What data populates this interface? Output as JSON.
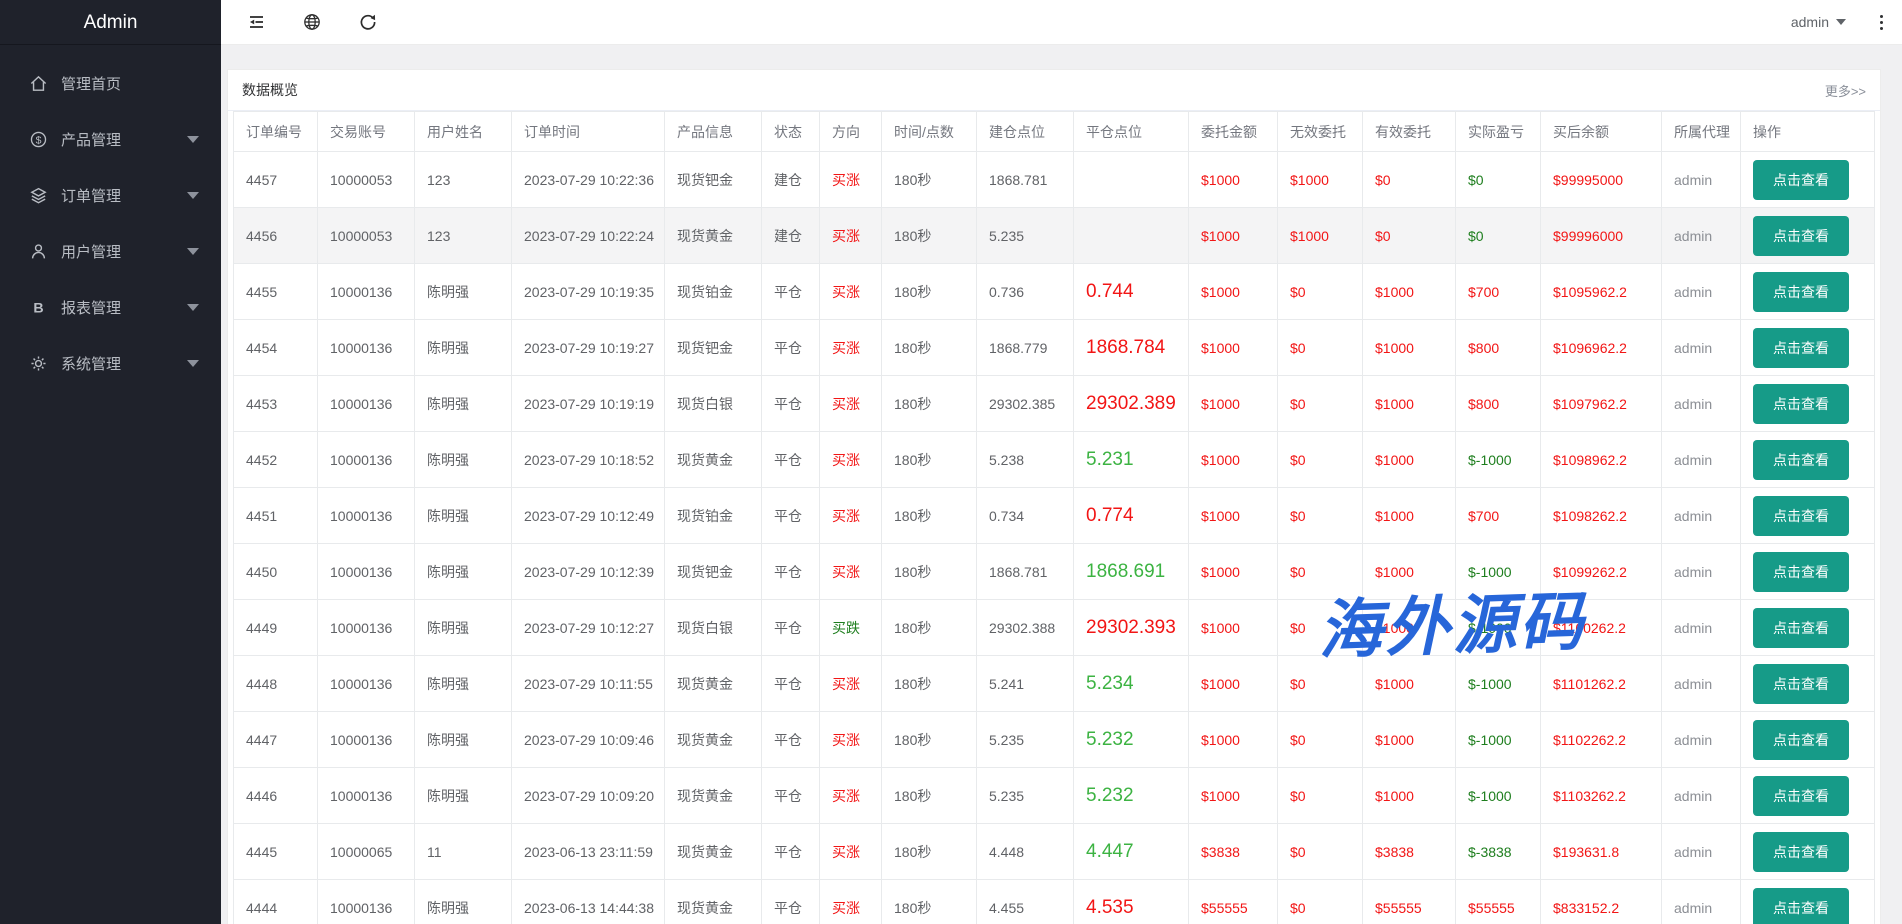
{
  "sidebar": {
    "title": "Admin",
    "items": [
      {
        "key": "home",
        "icon": "home-icon",
        "label": "管理首页",
        "has_caret": false
      },
      {
        "key": "product",
        "icon": "product-icon",
        "label": "产品管理",
        "has_caret": true
      },
      {
        "key": "orders",
        "icon": "orders-icon",
        "label": "订单管理",
        "has_caret": true
      },
      {
        "key": "users",
        "icon": "users-icon",
        "label": "用户管理",
        "has_caret": true
      },
      {
        "key": "reports",
        "icon": "reports-icon",
        "label": "报表管理",
        "has_caret": true
      },
      {
        "key": "system",
        "icon": "system-icon",
        "label": "系统管理",
        "has_caret": true
      }
    ]
  },
  "topbar": {
    "icons": [
      "fold-menu-icon",
      "globe-icon",
      "refresh-icon"
    ],
    "user": "admin",
    "menu_icon": "kebab-menu-icon"
  },
  "panel": {
    "title": "数据概览",
    "more_label": "更多>>"
  },
  "table": {
    "columns": [
      "订单编号",
      "交易账号",
      "用户姓名",
      "订单时间",
      "产品信息",
      "状态",
      "方向",
      "时间/点数",
      "建仓点位",
      "平仓点位",
      "委托金额",
      "无效委托",
      "有效委托",
      "实际盈亏",
      "买后余额",
      "所属代理",
      "操作"
    ],
    "view_button_label": "点击查看",
    "rows": [
      {
        "id": "4457",
        "account": "10000053",
        "name": "123",
        "time": "2023-07-29 10:22:36",
        "product": "现货钯金",
        "status": "建仓",
        "direction": "买涨",
        "dir_c": "red",
        "duration": "180秒",
        "open": "1868.781",
        "close": "",
        "close_c": "red",
        "amount": "$1000",
        "invalid": "$1000",
        "valid": "$0",
        "profit": "$0",
        "profit_c": "green",
        "balance": "$99995000",
        "agent": "admin",
        "highlighted": false
      },
      {
        "id": "4456",
        "account": "10000053",
        "name": "123",
        "time": "2023-07-29 10:22:24",
        "product": "现货黄金",
        "status": "建仓",
        "direction": "买涨",
        "dir_c": "red",
        "duration": "180秒",
        "open": "5.235",
        "close": "",
        "close_c": "red",
        "amount": "$1000",
        "invalid": "$1000",
        "valid": "$0",
        "profit": "$0",
        "profit_c": "green",
        "balance": "$99996000",
        "agent": "admin",
        "highlighted": true
      },
      {
        "id": "4455",
        "account": "10000136",
        "name": "陈明强",
        "time": "2023-07-29 10:19:35",
        "product": "现货铂金",
        "status": "平仓",
        "direction": "买涨",
        "dir_c": "red",
        "duration": "180秒",
        "open": "0.736",
        "close": "0.744",
        "close_c": "red",
        "amount": "$1000",
        "invalid": "$0",
        "valid": "$1000",
        "profit": "$700",
        "profit_c": "red",
        "balance": "$1095962.2",
        "agent": "admin",
        "highlighted": false
      },
      {
        "id": "4454",
        "account": "10000136",
        "name": "陈明强",
        "time": "2023-07-29 10:19:27",
        "product": "现货钯金",
        "status": "平仓",
        "direction": "买涨",
        "dir_c": "red",
        "duration": "180秒",
        "open": "1868.779",
        "close": "1868.784",
        "close_c": "red",
        "amount": "$1000",
        "invalid": "$0",
        "valid": "$1000",
        "profit": "$800",
        "profit_c": "red",
        "balance": "$1096962.2",
        "agent": "admin",
        "highlighted": false
      },
      {
        "id": "4453",
        "account": "10000136",
        "name": "陈明强",
        "time": "2023-07-29 10:19:19",
        "product": "现货白银",
        "status": "平仓",
        "direction": "买涨",
        "dir_c": "red",
        "duration": "180秒",
        "open": "29302.385",
        "close": "29302.389",
        "close_c": "red",
        "amount": "$1000",
        "invalid": "$0",
        "valid": "$1000",
        "profit": "$800",
        "profit_c": "red",
        "balance": "$1097962.2",
        "agent": "admin",
        "highlighted": false
      },
      {
        "id": "4452",
        "account": "10000136",
        "name": "陈明强",
        "time": "2023-07-29 10:18:52",
        "product": "现货黄金",
        "status": "平仓",
        "direction": "买涨",
        "dir_c": "red",
        "duration": "180秒",
        "open": "5.238",
        "close": "5.231",
        "close_c": "green",
        "amount": "$1000",
        "invalid": "$0",
        "valid": "$1000",
        "profit": "$-1000",
        "profit_c": "green",
        "balance": "$1098962.2",
        "agent": "admin",
        "highlighted": false
      },
      {
        "id": "4451",
        "account": "10000136",
        "name": "陈明强",
        "time": "2023-07-29 10:12:49",
        "product": "现货铂金",
        "status": "平仓",
        "direction": "买涨",
        "dir_c": "red",
        "duration": "180秒",
        "open": "0.734",
        "close": "0.774",
        "close_c": "red",
        "amount": "$1000",
        "invalid": "$0",
        "valid": "$1000",
        "profit": "$700",
        "profit_c": "red",
        "balance": "$1098262.2",
        "agent": "admin",
        "highlighted": false
      },
      {
        "id": "4450",
        "account": "10000136",
        "name": "陈明强",
        "time": "2023-07-29 10:12:39",
        "product": "现货钯金",
        "status": "平仓",
        "direction": "买涨",
        "dir_c": "red",
        "duration": "180秒",
        "open": "1868.781",
        "close": "1868.691",
        "close_c": "green",
        "amount": "$1000",
        "invalid": "$0",
        "valid": "$1000",
        "profit": "$-1000",
        "profit_c": "green",
        "balance": "$1099262.2",
        "agent": "admin",
        "highlighted": false
      },
      {
        "id": "4449",
        "account": "10000136",
        "name": "陈明强",
        "time": "2023-07-29 10:12:27",
        "product": "现货白银",
        "status": "平仓",
        "direction": "买跌",
        "dir_c": "green",
        "duration": "180秒",
        "open": "29302.388",
        "close": "29302.393",
        "close_c": "red",
        "amount": "$1000",
        "invalid": "$0",
        "valid": "$1000",
        "profit": "$-1000",
        "profit_c": "green",
        "balance": "$1100262.2",
        "agent": "admin",
        "highlighted": false
      },
      {
        "id": "4448",
        "account": "10000136",
        "name": "陈明强",
        "time": "2023-07-29 10:11:55",
        "product": "现货黄金",
        "status": "平仓",
        "direction": "买涨",
        "dir_c": "red",
        "duration": "180秒",
        "open": "5.241",
        "close": "5.234",
        "close_c": "green",
        "amount": "$1000",
        "invalid": "$0",
        "valid": "$1000",
        "profit": "$-1000",
        "profit_c": "green",
        "balance": "$1101262.2",
        "agent": "admin",
        "highlighted": false
      },
      {
        "id": "4447",
        "account": "10000136",
        "name": "陈明强",
        "time": "2023-07-29 10:09:46",
        "product": "现货黄金",
        "status": "平仓",
        "direction": "买涨",
        "dir_c": "red",
        "duration": "180秒",
        "open": "5.235",
        "close": "5.232",
        "close_c": "green",
        "amount": "$1000",
        "invalid": "$0",
        "valid": "$1000",
        "profit": "$-1000",
        "profit_c": "green",
        "balance": "$1102262.2",
        "agent": "admin",
        "highlighted": false
      },
      {
        "id": "4446",
        "account": "10000136",
        "name": "陈明强",
        "time": "2023-07-29 10:09:20",
        "product": "现货黄金",
        "status": "平仓",
        "direction": "买涨",
        "dir_c": "red",
        "duration": "180秒",
        "open": "5.235",
        "close": "5.232",
        "close_c": "green",
        "amount": "$1000",
        "invalid": "$0",
        "valid": "$1000",
        "profit": "$-1000",
        "profit_c": "green",
        "balance": "$1103262.2",
        "agent": "admin",
        "highlighted": false
      },
      {
        "id": "4445",
        "account": "10000065",
        "name": "11",
        "time": "2023-06-13 23:11:59",
        "product": "现货黄金",
        "status": "平仓",
        "direction": "买涨",
        "dir_c": "red",
        "duration": "180秒",
        "open": "4.448",
        "close": "4.447",
        "close_c": "green",
        "amount": "$3838",
        "invalid": "$0",
        "valid": "$3838",
        "profit": "$-3838",
        "profit_c": "green",
        "balance": "$193631.8",
        "agent": "admin",
        "highlighted": false
      },
      {
        "id": "4444",
        "account": "10000136",
        "name": "陈明强",
        "time": "2023-06-13 14:44:38",
        "product": "现货黄金",
        "status": "平仓",
        "direction": "买涨",
        "dir_c": "red",
        "duration": "180秒",
        "open": "4.455",
        "close": "4.535",
        "close_c": "red",
        "amount": "$55555",
        "invalid": "$0",
        "valid": "$55555",
        "profit": "$55555",
        "profit_c": "red",
        "balance": "$833152.2",
        "agent": "admin",
        "highlighted": false
      }
    ]
  },
  "watermark": "海外源码",
  "colors": {
    "sidebar_bg": "#1f222b",
    "accent_teal": "#169b88",
    "value_red": "#f21515",
    "value_green_dark": "#1e7e1e",
    "value_green_bright": "#3cb342",
    "watermark_blue": "#2766d9",
    "row_highlight": "#f4f4f5",
    "page_bg": "#f0f0f2"
  }
}
